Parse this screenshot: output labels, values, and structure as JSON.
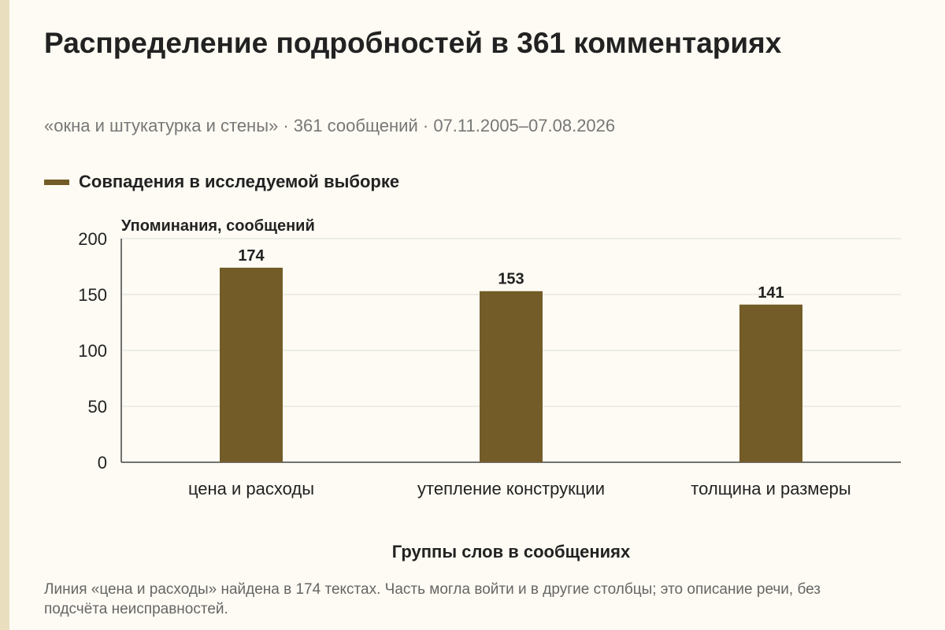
{
  "page": {
    "title": "Распределение подробностей в 361 комментариях",
    "subtitle": "«окна и штукатурка и стены» · 361 сообщений · 07.11.2005–07.08.2026",
    "footnote": "Линия «цена и расходы» найдена в 174 текстах. Часть могла войти и в другие столбцы; это описание речи, без подсчёта неисправностей."
  },
  "chart_data": {
    "type": "bar",
    "title": "Распределение подробностей в 361 комментариях",
    "subtitle": "«окна и штукатурка и стены» · 361 сообщений · 07.11.2005–07.08.2026",
    "categories": [
      "цена и расходы",
      "утепление конструкции",
      "толщина и размеры"
    ],
    "series": [
      {
        "name": "Совпадения в исследуемой выборке",
        "values": [
          174,
          153,
          141
        ],
        "color": "#735c27"
      }
    ],
    "xlabel": "Группы слов в сообщениях",
    "ylabel": "Упоминания, сообщений",
    "ylim": [
      0,
      200
    ],
    "yticks": [
      0,
      50,
      100,
      150,
      200
    ],
    "yticklabels": [
      "0",
      "50",
      "100",
      "150",
      "200"
    ],
    "data_labels": [
      "174",
      "153",
      "141"
    ],
    "grid": true,
    "legend": "top-left"
  }
}
